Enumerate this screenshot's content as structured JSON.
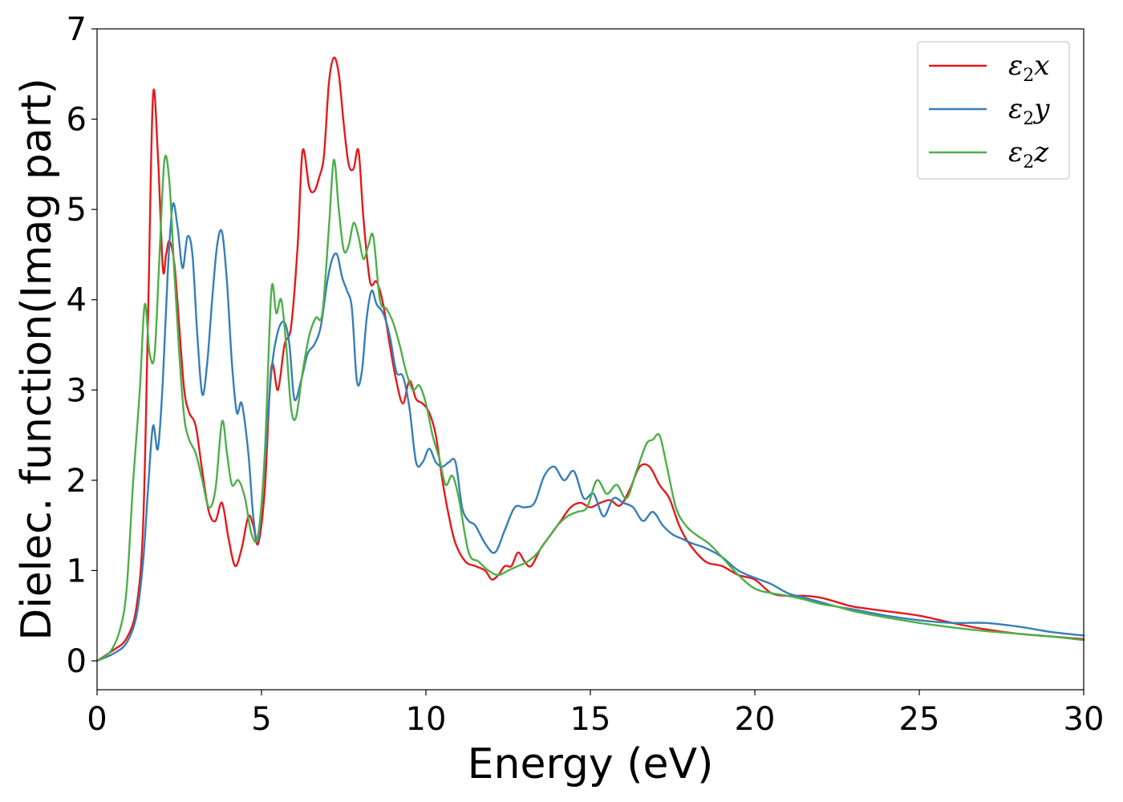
{
  "chart_data": {
    "type": "line",
    "title": "",
    "xlabel": "Energy (eV)",
    "ylabel": "Dielec. function(Imag part)",
    "xlim": [
      0,
      30
    ],
    "ylim": [
      -0.32,
      7.0
    ],
    "xticks": [
      0,
      5,
      10,
      15,
      20,
      25,
      30
    ],
    "yticks": [
      0,
      1,
      2,
      3,
      4,
      5,
      6,
      7
    ],
    "grid": false,
    "legend_position": "top-right",
    "series": [
      {
        "name": "ε2x",
        "legend_base": "ε",
        "legend_sub": "2",
        "legend_suffix": "x",
        "color": "#e31a1c",
        "x": [
          0,
          0.5,
          0.9,
          1.2,
          1.4,
          1.55,
          1.7,
          1.85,
          2.0,
          2.1,
          2.2,
          2.35,
          2.5,
          2.65,
          2.8,
          3.0,
          3.2,
          3.4,
          3.6,
          3.8,
          4.0,
          4.2,
          4.4,
          4.6,
          4.75,
          4.9,
          5.1,
          5.3,
          5.5,
          5.7,
          5.9,
          6.1,
          6.25,
          6.45,
          6.6,
          6.75,
          6.9,
          7.05,
          7.2,
          7.35,
          7.5,
          7.65,
          7.8,
          7.95,
          8.1,
          8.3,
          8.5,
          8.7,
          8.9,
          9.1,
          9.3,
          9.5,
          9.7,
          9.9,
          10.1,
          10.3,
          10.5,
          10.7,
          10.9,
          11.2,
          11.5,
          11.8,
          12.0,
          12.2,
          12.4,
          12.6,
          12.8,
          13.0,
          13.2,
          13.5,
          13.8,
          14.1,
          14.4,
          14.7,
          15.0,
          15.3,
          15.6,
          15.9,
          16.2,
          16.5,
          16.8,
          17.1,
          17.4,
          17.7,
          18.0,
          18.5,
          19.0,
          19.5,
          20.0,
          20.5,
          21.0,
          21.5,
          22.0,
          22.5,
          23.0,
          24.0,
          25.0,
          26.0,
          27.0,
          28.0,
          29.0,
          30.0
        ],
        "y": [
          0.0,
          0.12,
          0.25,
          0.6,
          1.5,
          3.8,
          6.25,
          5.6,
          4.35,
          4.5,
          4.65,
          4.4,
          3.7,
          3.0,
          2.75,
          2.6,
          2.1,
          1.65,
          1.55,
          1.75,
          1.35,
          1.05,
          1.25,
          1.6,
          1.5,
          1.3,
          1.9,
          3.25,
          3.0,
          3.5,
          3.7,
          4.6,
          5.65,
          5.25,
          5.2,
          5.35,
          5.6,
          6.4,
          6.68,
          6.5,
          5.95,
          5.5,
          5.45,
          5.65,
          4.9,
          4.2,
          4.2,
          3.95,
          3.5,
          3.1,
          2.85,
          3.1,
          2.9,
          2.85,
          2.75,
          2.5,
          2.0,
          1.6,
          1.3,
          1.1,
          1.05,
          1.0,
          0.9,
          0.95,
          1.05,
          1.05,
          1.2,
          1.1,
          1.05,
          1.25,
          1.4,
          1.55,
          1.7,
          1.75,
          1.7,
          1.75,
          1.78,
          1.72,
          1.9,
          2.15,
          2.15,
          1.95,
          1.8,
          1.5,
          1.3,
          1.1,
          1.05,
          0.95,
          0.9,
          0.75,
          0.72,
          0.72,
          0.7,
          0.65,
          0.6,
          0.55,
          0.5,
          0.42,
          0.35,
          0.3,
          0.27,
          0.24
        ]
      },
      {
        "name": "ε2y",
        "legend_base": "ε",
        "legend_sub": "2",
        "legend_suffix": "y",
        "color": "#377eb8",
        "x": [
          0,
          0.5,
          0.9,
          1.2,
          1.4,
          1.55,
          1.7,
          1.85,
          2.0,
          2.15,
          2.3,
          2.45,
          2.6,
          2.75,
          2.9,
          3.05,
          3.2,
          3.35,
          3.5,
          3.65,
          3.8,
          3.95,
          4.1,
          4.25,
          4.4,
          4.6,
          4.75,
          4.9,
          5.1,
          5.3,
          5.5,
          5.7,
          5.85,
          6.0,
          6.2,
          6.4,
          6.6,
          6.8,
          7.0,
          7.15,
          7.3,
          7.45,
          7.6,
          7.75,
          7.9,
          8.05,
          8.2,
          8.35,
          8.5,
          8.7,
          8.9,
          9.1,
          9.3,
          9.5,
          9.7,
          9.9,
          10.1,
          10.3,
          10.5,
          10.7,
          10.9,
          11.1,
          11.3,
          11.5,
          11.8,
          12.1,
          12.4,
          12.7,
          13.0,
          13.3,
          13.6,
          13.9,
          14.2,
          14.5,
          14.8,
          15.1,
          15.4,
          15.7,
          16.0,
          16.3,
          16.6,
          16.9,
          17.2,
          17.5,
          17.8,
          18.1,
          18.5,
          19.0,
          19.5,
          20.0,
          20.5,
          21.0,
          21.5,
          22.0,
          22.5,
          23.0,
          24.0,
          25.0,
          26.0,
          27.0,
          28.0,
          29.0,
          30.0
        ],
        "y": [
          0.0,
          0.08,
          0.2,
          0.5,
          1.1,
          1.9,
          2.6,
          2.35,
          3.1,
          4.3,
          5.05,
          4.8,
          4.35,
          4.7,
          4.5,
          3.6,
          2.95,
          3.3,
          4.0,
          4.6,
          4.75,
          4.2,
          3.3,
          2.75,
          2.85,
          2.3,
          1.6,
          1.35,
          2.2,
          3.2,
          3.65,
          3.75,
          3.5,
          2.9,
          3.1,
          3.4,
          3.5,
          3.7,
          4.2,
          4.45,
          4.5,
          4.25,
          4.1,
          3.9,
          3.1,
          3.2,
          3.8,
          4.1,
          3.95,
          3.85,
          3.6,
          3.2,
          3.15,
          2.8,
          2.2,
          2.2,
          2.35,
          2.2,
          2.15,
          2.2,
          2.2,
          1.7,
          1.55,
          1.5,
          1.3,
          1.2,
          1.45,
          1.7,
          1.7,
          1.75,
          2.05,
          2.15,
          2.0,
          2.1,
          1.8,
          1.85,
          1.6,
          1.8,
          1.75,
          1.7,
          1.55,
          1.65,
          1.5,
          1.4,
          1.35,
          1.3,
          1.25,
          1.15,
          1.0,
          0.92,
          0.85,
          0.75,
          0.7,
          0.65,
          0.6,
          0.57,
          0.5,
          0.45,
          0.42,
          0.42,
          0.38,
          0.32,
          0.28
        ]
      },
      {
        "name": "ε2z",
        "legend_base": "ε",
        "legend_sub": "2",
        "legend_suffix": "z",
        "color": "#4daf4a",
        "x": [
          0,
          0.4,
          0.7,
          0.9,
          1.1,
          1.3,
          1.45,
          1.6,
          1.75,
          1.9,
          2.05,
          2.2,
          2.35,
          2.5,
          2.65,
          2.8,
          3.0,
          3.2,
          3.4,
          3.6,
          3.8,
          3.95,
          4.1,
          4.3,
          4.5,
          4.7,
          4.9,
          5.1,
          5.3,
          5.45,
          5.6,
          5.75,
          5.9,
          6.05,
          6.25,
          6.45,
          6.65,
          6.85,
          7.05,
          7.2,
          7.35,
          7.5,
          7.65,
          7.8,
          7.95,
          8.1,
          8.25,
          8.4,
          8.6,
          8.8,
          9.0,
          9.2,
          9.4,
          9.6,
          9.8,
          10.0,
          10.2,
          10.4,
          10.6,
          10.8,
          11.0,
          11.3,
          11.6,
          11.9,
          12.2,
          12.5,
          12.8,
          13.1,
          13.4,
          13.7,
          14.0,
          14.3,
          14.6,
          14.9,
          15.2,
          15.5,
          15.8,
          16.1,
          16.4,
          16.7,
          16.9,
          17.1,
          17.3,
          17.6,
          17.9,
          18.2,
          18.6,
          19.0,
          19.5,
          20.0,
          20.5,
          21.0,
          21.5,
          22.0,
          22.5,
          23.0,
          24.0,
          25.0,
          26.0,
          27.0,
          28.0,
          29.0,
          30.0
        ],
        "y": [
          0.0,
          0.1,
          0.35,
          0.8,
          2.0,
          3.0,
          3.95,
          3.4,
          3.4,
          4.5,
          5.55,
          5.3,
          4.3,
          3.4,
          2.7,
          2.45,
          2.3,
          2.0,
          1.7,
          1.9,
          2.65,
          2.3,
          1.95,
          2.0,
          1.8,
          1.4,
          1.4,
          2.3,
          4.1,
          3.85,
          4.0,
          3.5,
          2.8,
          2.7,
          3.2,
          3.6,
          3.8,
          3.85,
          4.8,
          5.55,
          5.0,
          4.55,
          4.6,
          4.85,
          4.7,
          4.45,
          4.6,
          4.7,
          4.0,
          3.9,
          3.75,
          3.5,
          3.2,
          3.0,
          3.05,
          2.85,
          2.5,
          2.25,
          1.95,
          2.05,
          1.8,
          1.2,
          1.1,
          1.0,
          0.95,
          1.0,
          1.05,
          1.1,
          1.2,
          1.35,
          1.5,
          1.6,
          1.65,
          1.7,
          2.0,
          1.85,
          1.95,
          1.8,
          2.1,
          2.4,
          2.45,
          2.5,
          2.2,
          1.7,
          1.5,
          1.4,
          1.3,
          1.15,
          0.95,
          0.8,
          0.75,
          0.72,
          0.68,
          0.63,
          0.6,
          0.55,
          0.48,
          0.42,
          0.37,
          0.33,
          0.3,
          0.27,
          0.23
        ]
      }
    ]
  }
}
